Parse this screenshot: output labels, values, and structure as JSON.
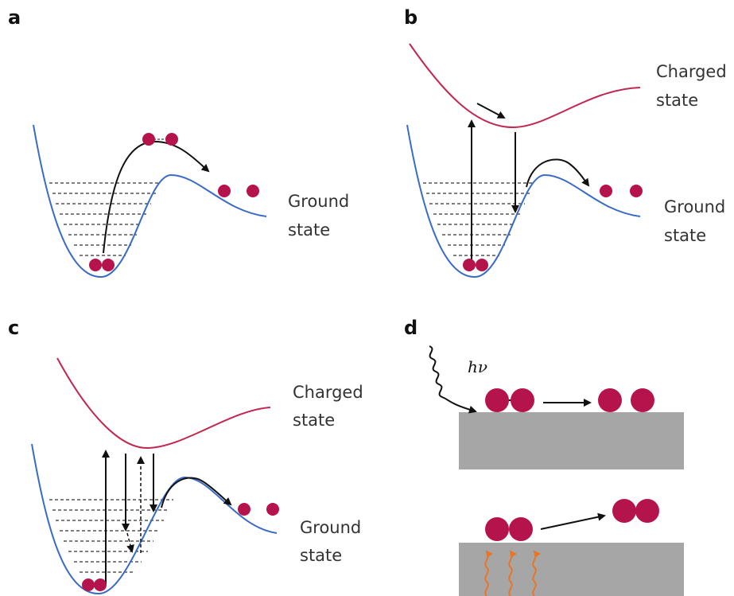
{
  "panels": [
    {
      "label": "a",
      "ground_label": [
        "Ground",
        "state"
      ]
    },
    {
      "label": "b",
      "charged_label": [
        "Charged",
        "state"
      ],
      "ground_label": [
        "Ground",
        "state"
      ]
    },
    {
      "label": "c",
      "charged_label": [
        "Charged",
        "state"
      ],
      "ground_label": [
        "Ground",
        "state"
      ]
    },
    {
      "label": "d",
      "photon_label": "hν"
    }
  ]
}
